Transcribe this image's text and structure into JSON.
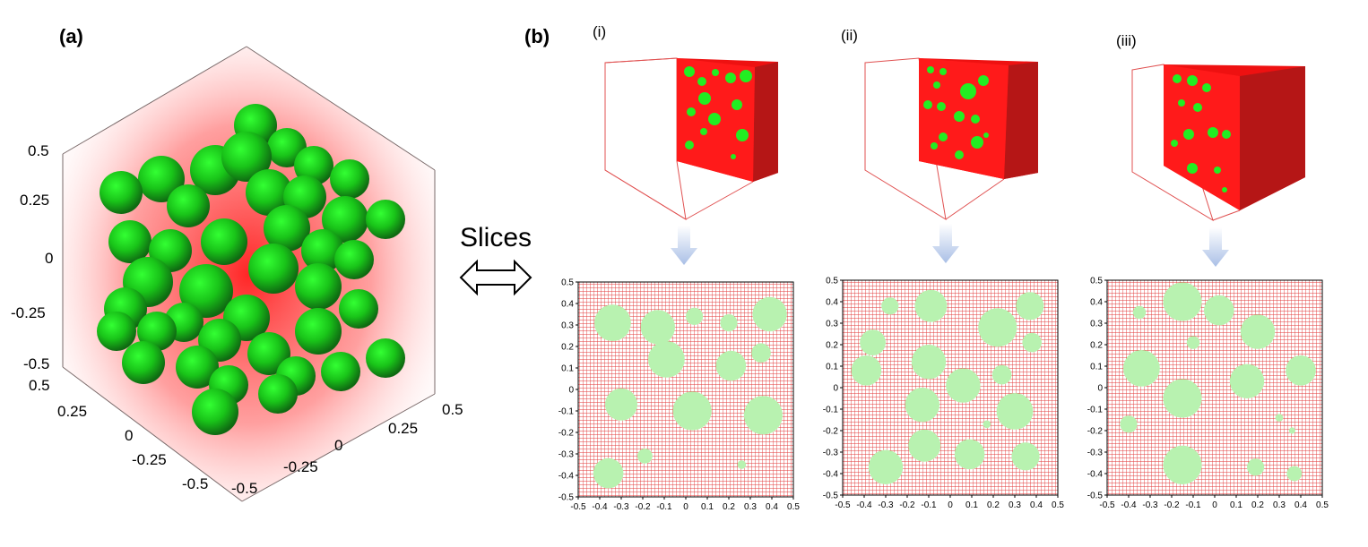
{
  "panels": {
    "a": {
      "label": "(a)",
      "z_ticks": [
        "0.5",
        "0.25",
        "0",
        "-0.25",
        "-0.5"
      ],
      "y_ticks": [
        "0.5",
        "0.25",
        "0",
        "-0.25",
        "-0.5"
      ],
      "x_ticks": [
        "-0.5",
        "-0.25",
        "0",
        "0.25",
        "0.5"
      ]
    },
    "b": {
      "label": "(b)",
      "sublabels": [
        "(i)",
        "(ii)",
        "(iii)"
      ]
    }
  },
  "arrow_label": "Slices",
  "colors": {
    "matrix": "#ff0000",
    "matrix_dark": "#b81313",
    "inclusion": "#22ee22",
    "inclusion_light": "#b8f2b0",
    "grid": "#e23a3a",
    "arrow_blue": "#a9bfe6"
  },
  "slice_plots": [
    {
      "name": "(i)",
      "xticks": [
        "-0.5",
        "-0.4",
        "-0.3",
        "-0.2",
        "-0.1",
        "0",
        "0.1",
        "0.2",
        "0.3",
        "0.4",
        "0.5"
      ],
      "yticks": [
        "0.5",
        "0.4",
        "0.3",
        "0.2",
        "0.1",
        "0",
        "-0.1",
        "-0.2",
        "-0.3",
        "-0.4",
        "-0.5"
      ],
      "circles": [
        {
          "x": -0.34,
          "y": 0.31,
          "r": 0.085
        },
        {
          "x": -0.13,
          "y": 0.29,
          "r": 0.08
        },
        {
          "x": 0.04,
          "y": 0.34,
          "r": 0.04
        },
        {
          "x": 0.2,
          "y": 0.31,
          "r": 0.04
        },
        {
          "x": 0.39,
          "y": 0.35,
          "r": 0.08
        },
        {
          "x": -0.09,
          "y": 0.14,
          "r": 0.085
        },
        {
          "x": 0.21,
          "y": 0.11,
          "r": 0.07
        },
        {
          "x": 0.35,
          "y": 0.17,
          "r": 0.045
        },
        {
          "x": -0.3,
          "y": -0.07,
          "r": 0.075
        },
        {
          "x": 0.03,
          "y": -0.1,
          "r": 0.09
        },
        {
          "x": 0.36,
          "y": -0.12,
          "r": 0.09
        },
        {
          "x": -0.36,
          "y": -0.39,
          "r": 0.07
        },
        {
          "x": -0.19,
          "y": -0.31,
          "r": 0.035
        },
        {
          "x": 0.26,
          "y": -0.35,
          "r": 0.02
        }
      ]
    },
    {
      "name": "(ii)",
      "xticks": [
        "-0.5",
        "-0.4",
        "-0.3",
        "-0.2",
        "-0.1",
        "0",
        "0.1",
        "0.2",
        "0.3",
        "0.4",
        "0.5"
      ],
      "yticks": [
        "0.5",
        "0.4",
        "0.3",
        "0.2",
        "0.1",
        "0",
        "-0.1",
        "-0.2",
        "-0.3",
        "-0.4",
        "-0.5"
      ],
      "circles": [
        {
          "x": -0.28,
          "y": 0.38,
          "r": 0.04
        },
        {
          "x": -0.09,
          "y": 0.38,
          "r": 0.075
        },
        {
          "x": 0.22,
          "y": 0.28,
          "r": 0.09
        },
        {
          "x": 0.37,
          "y": 0.38,
          "r": 0.065
        },
        {
          "x": -0.36,
          "y": 0.21,
          "r": 0.06
        },
        {
          "x": 0.38,
          "y": 0.21,
          "r": 0.045
        },
        {
          "x": -0.39,
          "y": 0.08,
          "r": 0.07
        },
        {
          "x": -0.1,
          "y": 0.12,
          "r": 0.08
        },
        {
          "x": 0.06,
          "y": 0.01,
          "r": 0.08
        },
        {
          "x": 0.24,
          "y": 0.06,
          "r": 0.045
        },
        {
          "x": -0.13,
          "y": -0.08,
          "r": 0.08
        },
        {
          "x": 0.3,
          "y": -0.11,
          "r": 0.085
        },
        {
          "x": 0.17,
          "y": -0.17,
          "r": 0.018
        },
        {
          "x": -0.12,
          "y": -0.27,
          "r": 0.075
        },
        {
          "x": 0.09,
          "y": -0.31,
          "r": 0.07
        },
        {
          "x": 0.35,
          "y": -0.32,
          "r": 0.065
        },
        {
          "x": -0.3,
          "y": -0.37,
          "r": 0.08
        }
      ]
    },
    {
      "name": "(iii)",
      "xticks": [
        "-0.5",
        "-0.4",
        "-0.3",
        "-0.2",
        "-0.1",
        "0",
        "0.1",
        "0.2",
        "0.3",
        "0.4",
        "0.5"
      ],
      "yticks": [
        "0.5",
        "0.4",
        "0.3",
        "0.2",
        "0.1",
        "0",
        "-0.1",
        "-0.2",
        "-0.3",
        "-0.4",
        "-0.5"
      ],
      "circles": [
        {
          "x": -0.15,
          "y": 0.4,
          "r": 0.09
        },
        {
          "x": 0.02,
          "y": 0.36,
          "r": 0.07
        },
        {
          "x": -0.35,
          "y": 0.35,
          "r": 0.03
        },
        {
          "x": 0.2,
          "y": 0.26,
          "r": 0.08
        },
        {
          "x": -0.1,
          "y": 0.21,
          "r": 0.03
        },
        {
          "x": -0.34,
          "y": 0.09,
          "r": 0.085
        },
        {
          "x": 0.15,
          "y": 0.03,
          "r": 0.08
        },
        {
          "x": 0.4,
          "y": 0.08,
          "r": 0.07
        },
        {
          "x": -0.15,
          "y": -0.05,
          "r": 0.09
        },
        {
          "x": -0.4,
          "y": -0.17,
          "r": 0.04
        },
        {
          "x": 0.3,
          "y": -0.14,
          "r": 0.018
        },
        {
          "x": 0.36,
          "y": -0.2,
          "r": 0.015
        },
        {
          "x": -0.15,
          "y": -0.36,
          "r": 0.09
        },
        {
          "x": 0.19,
          "y": -0.37,
          "r": 0.04
        },
        {
          "x": 0.37,
          "y": -0.4,
          "r": 0.035
        }
      ]
    }
  ]
}
